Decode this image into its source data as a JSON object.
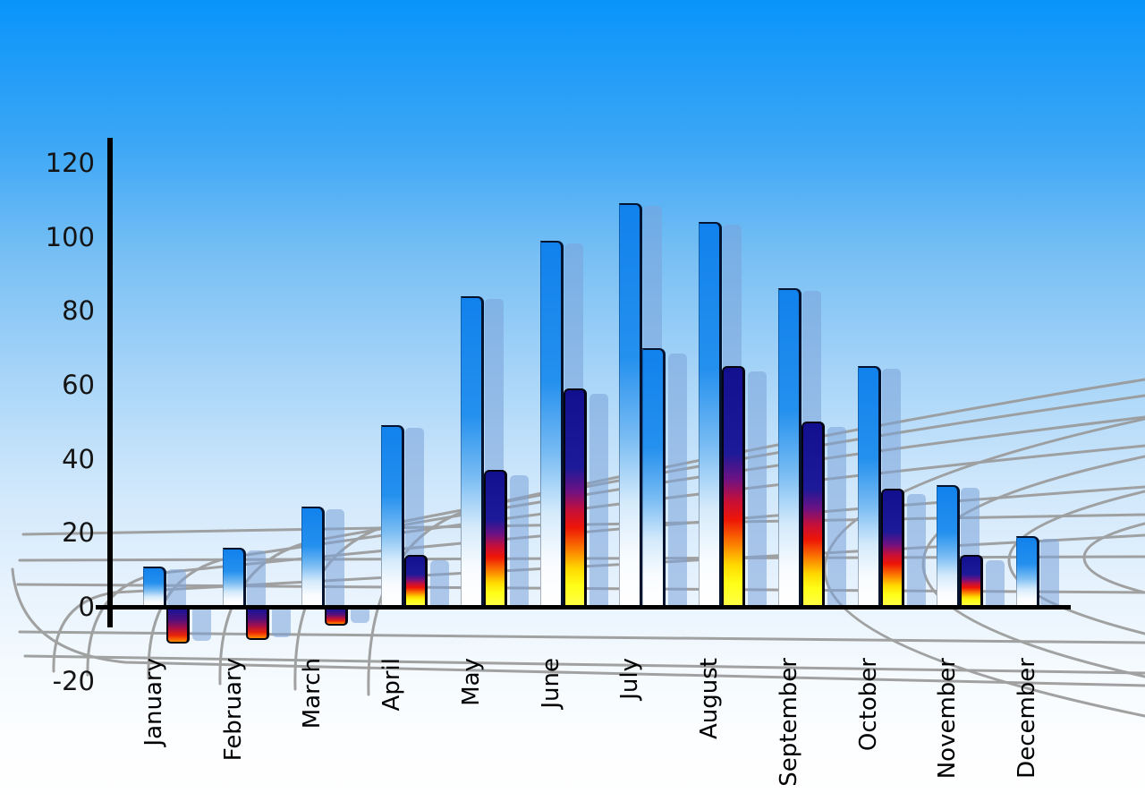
{
  "chart_data": {
    "type": "bar",
    "title": "",
    "xlabel": "",
    "ylabel": "",
    "categories": [
      "January",
      "February",
      "March",
      "April",
      "May",
      "June",
      "July",
      "August",
      "September",
      "October",
      "November",
      "December"
    ],
    "series": [
      {
        "name": "primary-blue-bars",
        "values": [
          11,
          16,
          27,
          49,
          84,
          99,
          109,
          104,
          86,
          65,
          33,
          19
        ]
      },
      {
        "name": "secondary-heat-bars",
        "values": [
          -10,
          -9,
          -5,
          14,
          37,
          59,
          70,
          65,
          50,
          32,
          14,
          null
        ],
        "bar_style": [
          "heat",
          "heat",
          "heat",
          "heat",
          "heat",
          "heat",
          "blue",
          "heat",
          "heat",
          "heat",
          "heat",
          null
        ]
      }
    ],
    "ylim": [
      -20,
      120
    ],
    "y_ticks": [
      120,
      100,
      80,
      60,
      40,
      20,
      0,
      -20
    ],
    "legend_position": "none",
    "grid": "decorative gray perspective net behind bars"
  },
  "axes": {
    "y_tick_labels": [
      "120",
      "100",
      "80",
      "60",
      "40",
      "20",
      "0",
      "-20"
    ],
    "x_tick_labels": [
      "January",
      "February",
      "March",
      "April",
      "May",
      "June",
      "July",
      "August",
      "September",
      "October",
      "November",
      "December"
    ]
  },
  "colors": {
    "sky_top": "#0894fa",
    "sky_bottom": "#ffffff",
    "bar_blue_top": "#1181ec",
    "bar_blue_bottom": "#ffffff",
    "heat_navy": "#12108e",
    "heat_red": "#ee1507",
    "heat_yellow": "#ffff18",
    "shadow_bar": "rgba(122,163,217,0.55)",
    "grid_line": "#9a9a9a",
    "axis_line": "#000000"
  }
}
